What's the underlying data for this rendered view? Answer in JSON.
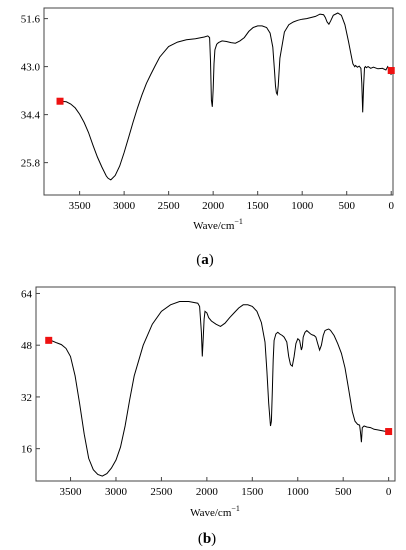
{
  "chart_data": [
    {
      "type": "line",
      "caption": {
        "open": "(",
        "letter": "a",
        "close": ")"
      },
      "xlabel": {
        "base": "Wave/cm",
        "sup": "−1"
      },
      "xlim": [
        3900,
        -20
      ],
      "ylim": [
        20.0,
        53.5
      ],
      "xticks": [
        3500,
        3000,
        2500,
        2000,
        1500,
        1000,
        500,
        0
      ],
      "yticks": [
        25.8,
        34.4,
        43.0,
        51.6
      ],
      "ytick_labels": [
        "25.8",
        "34.4",
        "43.0",
        "51.6"
      ],
      "marker_color": "#ee1111",
      "markers": [
        [
          3720,
          36.8
        ],
        [
          0,
          42.3
        ]
      ],
      "series": [
        {
          "x": [
            3720,
            3650,
            3600,
            3550,
            3500,
            3450,
            3400,
            3350,
            3300,
            3250,
            3200,
            3180,
            3150,
            3100,
            3050,
            3000,
            2950,
            2900,
            2850,
            2800,
            2750,
            2700,
            2650,
            2600,
            2500,
            2400,
            2300,
            2200,
            2100,
            2060,
            2040,
            2030,
            2020,
            2010,
            2000,
            1990,
            1980,
            1960,
            1940,
            1900,
            1850,
            1800,
            1750,
            1700,
            1650,
            1600,
            1550,
            1500,
            1450,
            1400,
            1360,
            1330,
            1310,
            1300,
            1290,
            1280,
            1270,
            1250,
            1200,
            1150,
            1100,
            1050,
            1000,
            950,
            900,
            850,
            800,
            760,
            740,
            720,
            700,
            680,
            650,
            600,
            560,
            520,
            480,
            450,
            430,
            410,
            400,
            380,
            360,
            340,
            330,
            320,
            310,
            300,
            290,
            280,
            260,
            230,
            200,
            150,
            100,
            60,
            40,
            20,
            0
          ],
          "y": [
            36.8,
            36.7,
            36.3,
            35.6,
            34.5,
            33.0,
            31.2,
            28.9,
            26.8,
            25.0,
            23.4,
            23.0,
            22.7,
            23.5,
            25.2,
            27.6,
            30.3,
            33.0,
            35.6,
            37.9,
            40.0,
            41.6,
            43.2,
            44.7,
            46.6,
            47.4,
            47.8,
            48.0,
            48.3,
            48.5,
            48.2,
            44.0,
            37.0,
            35.8,
            39.0,
            43.5,
            46.0,
            47.0,
            47.3,
            47.6,
            47.5,
            47.3,
            47.2,
            47.6,
            48.2,
            49.3,
            50.0,
            50.3,
            50.3,
            50.0,
            49.0,
            46.5,
            42.0,
            39.5,
            38.3,
            38.0,
            39.5,
            44.5,
            49.2,
            50.5,
            51.0,
            51.3,
            51.5,
            51.6,
            51.8,
            52.0,
            52.4,
            52.3,
            51.8,
            51.0,
            50.6,
            51.2,
            52.2,
            52.6,
            52.2,
            50.5,
            47.5,
            45.0,
            43.5,
            43.0,
            43.2,
            42.9,
            43.1,
            42.7,
            40.0,
            34.8,
            39.5,
            42.8,
            43.0,
            42.8,
            43.0,
            42.7,
            42.9,
            42.6,
            42.7,
            42.4,
            43.0,
            42.5,
            41.5
          ]
        }
      ]
    },
    {
      "type": "line",
      "caption": {
        "open": "(",
        "letter": "b",
        "close": ")"
      },
      "xlabel": {
        "base": "Wave/cm",
        "sup": "−1"
      },
      "xlim": [
        3880,
        -70
      ],
      "ylim": [
        6.0,
        66.0
      ],
      "xticks": [
        3500,
        3000,
        2500,
        2000,
        1500,
        1000,
        500,
        0
      ],
      "yticks": [
        16,
        32,
        48,
        64
      ],
      "ytick_labels": [
        "16",
        "32",
        "48",
        "64"
      ],
      "marker_color": "#ee1111",
      "markers": [
        [
          3740,
          49.5
        ],
        [
          0,
          21.3
        ]
      ],
      "series": [
        {
          "x": [
            3740,
            3700,
            3650,
            3600,
            3550,
            3500,
            3450,
            3400,
            3350,
            3300,
            3250,
            3200,
            3150,
            3100,
            3050,
            3000,
            2950,
            2900,
            2850,
            2800,
            2700,
            2600,
            2500,
            2400,
            2300,
            2200,
            2100,
            2080,
            2060,
            2050,
            2040,
            2030,
            2020,
            2000,
            1980,
            1950,
            1900,
            1850,
            1800,
            1750,
            1700,
            1650,
            1600,
            1550,
            1500,
            1450,
            1400,
            1360,
            1340,
            1320,
            1300,
            1290,
            1280,
            1270,
            1260,
            1240,
            1220,
            1200,
            1170,
            1150,
            1120,
            1100,
            1080,
            1060,
            1040,
            1020,
            1000,
            980,
            970,
            960,
            950,
            940,
            920,
            900,
            880,
            860,
            840,
            820,
            800,
            780,
            760,
            740,
            720,
            700,
            680,
            660,
            640,
            600,
            560,
            520,
            480,
            440,
            400,
            370,
            340,
            320,
            310,
            300,
            290,
            270,
            240,
            200,
            160,
            120,
            80,
            40,
            0
          ],
          "y": [
            49.5,
            49.3,
            48.7,
            48.2,
            47.0,
            44.5,
            38.5,
            30.0,
            20.5,
            13.0,
            9.5,
            8.0,
            7.5,
            8.3,
            10.0,
            12.5,
            16.5,
            23.0,
            31.0,
            38.5,
            48.0,
            54.5,
            58.5,
            60.5,
            61.5,
            61.5,
            61.0,
            60.0,
            52.0,
            44.5,
            50.0,
            56.0,
            58.5,
            58.0,
            56.5,
            55.5,
            54.5,
            53.8,
            54.8,
            56.5,
            58.0,
            59.5,
            60.5,
            60.5,
            60.0,
            58.5,
            55.0,
            49.0,
            40.0,
            30.0,
            23.0,
            24.5,
            33.5,
            43.5,
            49.5,
            51.5,
            52.0,
            51.5,
            51.0,
            50.5,
            49.0,
            44.5,
            42.0,
            41.5,
            44.5,
            48.5,
            50.0,
            49.5,
            48.0,
            46.5,
            47.5,
            50.5,
            52.0,
            52.5,
            52.0,
            51.5,
            51.2,
            51.0,
            50.5,
            48.5,
            46.5,
            48.0,
            51.0,
            52.5,
            52.8,
            53.0,
            52.6,
            51.0,
            48.5,
            45.5,
            41.0,
            34.5,
            27.5,
            24.5,
            23.5,
            23.3,
            21.0,
            18.0,
            22.5,
            23.0,
            22.7,
            22.5,
            22.0,
            21.8,
            21.6,
            21.4,
            21.3
          ]
        }
      ]
    }
  ]
}
